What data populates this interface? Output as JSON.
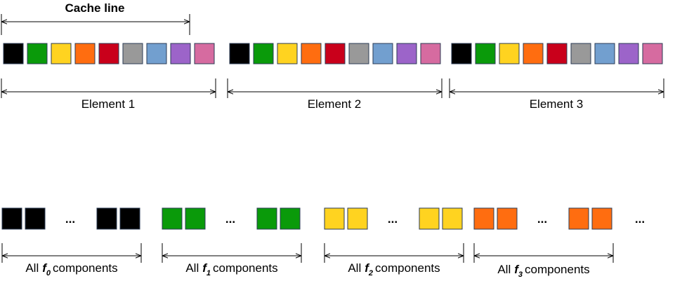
{
  "cache_line_label": "Cache line",
  "elements": [
    {
      "label": "Element 1"
    },
    {
      "label": "Element 2"
    },
    {
      "label": "Element 3"
    }
  ],
  "ellipsis": "...",
  "components": [
    {
      "prefix": "All",
      "symbol": "f",
      "subscript": "0",
      "suffix": "components"
    },
    {
      "prefix": "All",
      "symbol": "f",
      "subscript": "1",
      "suffix": "components"
    },
    {
      "prefix": "All",
      "symbol": "f",
      "subscript": "2",
      "suffix": "components"
    },
    {
      "prefix": "All",
      "symbol": "f",
      "subscript": "3",
      "suffix": "components"
    }
  ]
}
